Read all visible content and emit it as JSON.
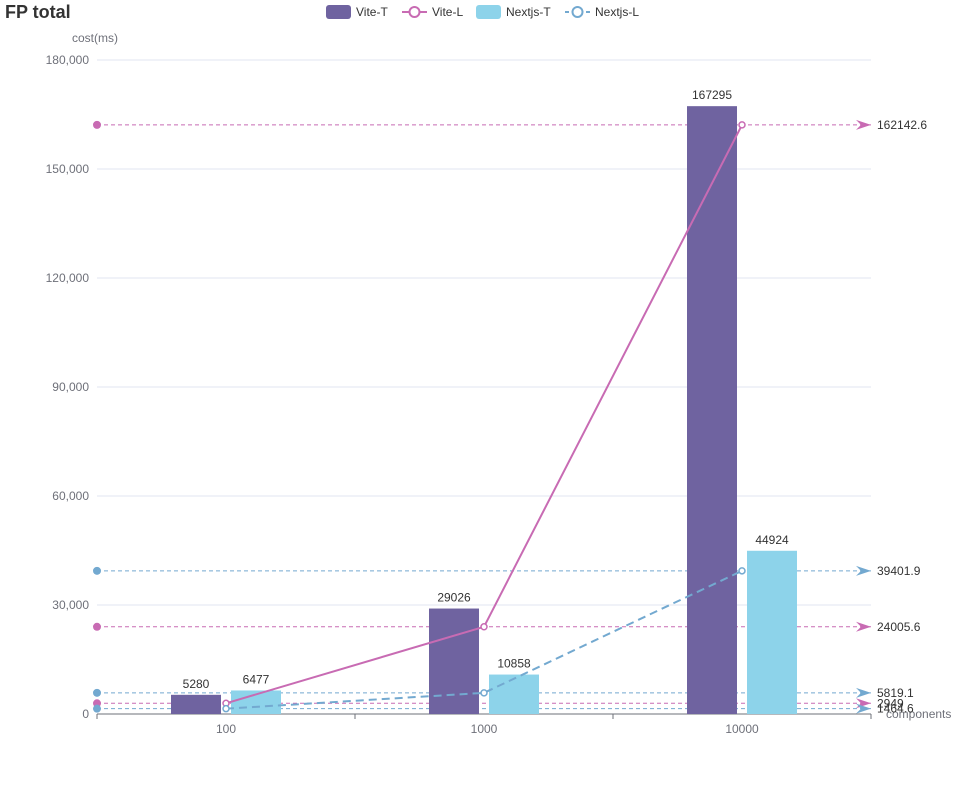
{
  "chart_data": {
    "type": "bar",
    "title": "FP total",
    "xlabel": "components",
    "ylabel": "cost(ms)",
    "categories": [
      "100",
      "1000",
      "10000"
    ],
    "ylim": [
      0,
      180000
    ],
    "yticks": [
      0,
      30000,
      60000,
      90000,
      120000,
      150000,
      180000
    ],
    "ytick_labels": [
      "0",
      "30,000",
      "60,000",
      "90,000",
      "120,000",
      "150,000",
      "180,000"
    ],
    "grid": true,
    "legend_position": "top-center",
    "series": [
      {
        "name": "Vite-T",
        "kind": "bar",
        "color": "#6f63a0",
        "values": [
          5280,
          29026,
          167295
        ],
        "labels": [
          "5280",
          "29026",
          "167295"
        ]
      },
      {
        "name": "Vite-L",
        "kind": "line",
        "color": "#c86bb3",
        "dashed": false,
        "values": [
          2949,
          24005.6,
          162142.6
        ]
      },
      {
        "name": "Nextjs-T",
        "kind": "bar",
        "color": "#8dd3ea",
        "values": [
          6477,
          10858,
          44924
        ],
        "labels": [
          "6477",
          "10858",
          "44924"
        ]
      },
      {
        "name": "Nextjs-L",
        "kind": "line",
        "color": "#73a9d0",
        "dashed": true,
        "values": [
          1464.6,
          5819.1,
          39401.9
        ]
      }
    ],
    "mark_lines": [
      {
        "series": "Vite-L",
        "value": 162142.6,
        "label": "162142.6"
      },
      {
        "series": "Vite-L",
        "value": 24005.6,
        "label": "24005.6"
      },
      {
        "series": "Vite-L",
        "value": 2949,
        "label": "2949"
      },
      {
        "series": "Nextjs-L",
        "value": 39401.9,
        "label": "39401.9"
      },
      {
        "series": "Nextjs-L",
        "value": 5819.1,
        "label": "5819.1"
      },
      {
        "series": "Nextjs-L",
        "value": 1464.6,
        "label": "1464.6"
      }
    ]
  }
}
